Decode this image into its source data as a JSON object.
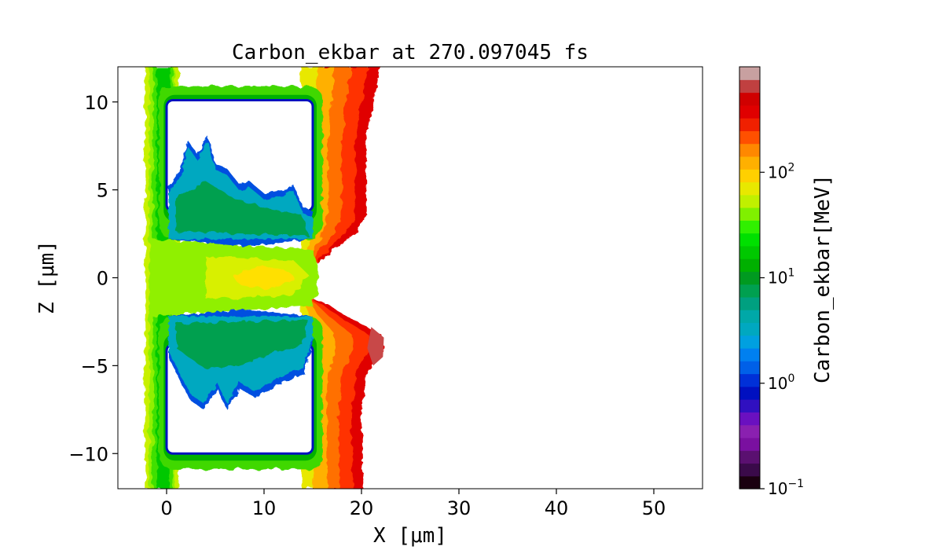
{
  "chart_data": {
    "type": "heatmap",
    "title": "Carbon_ekbar at 270.097045 fs",
    "xlabel": "X  [μm]",
    "ylabel": "Z  [μm]",
    "xlim": [
      -5,
      55
    ],
    "ylim": [
      -12,
      12
    ],
    "x_ticks": [
      0,
      10,
      20,
      30,
      40,
      50
    ],
    "x_tick_labels": [
      "0",
      "10",
      "20",
      "30",
      "40",
      "50"
    ],
    "y_ticks": [
      10,
      5,
      0,
      -5,
      -10
    ],
    "y_tick_labels": [
      "10",
      "5",
      "0",
      "−5",
      "−10"
    ],
    "colorbar": {
      "label": "Carbon_ekbar[MeV]",
      "scale": "log",
      "range": [
        0.1,
        1000
      ],
      "ticks": [
        {
          "value": 0.1,
          "base": "10",
          "exp": "−1"
        },
        {
          "value": 1,
          "base": "10",
          "exp": "0"
        },
        {
          "value": 10,
          "base": "10",
          "exp": "1"
        },
        {
          "value": 100,
          "base": "10",
          "exp": "2"
        }
      ],
      "colors": [
        "#1a0010",
        "#3a0a4a",
        "#5a1070",
        "#7a10a0",
        "#8a20b0",
        "#6a10c0",
        "#3010c0",
        "#0010c0",
        "#0030d8",
        "#0060e8",
        "#0080f0",
        "#00a0e0",
        "#00a8c0",
        "#00a8a8",
        "#00a080",
        "#00a050",
        "#009a20",
        "#00b000",
        "#00c800",
        "#00e000",
        "#30f000",
        "#80f000",
        "#c0f000",
        "#e8e800",
        "#ffd000",
        "#ffb000",
        "#ff8800",
        "#ff5000",
        "#f02000",
        "#e00000",
        "#d00000",
        "#c04040",
        "#c8a0a0"
      ]
    },
    "regions": [
      {
        "name": "left-wall-band",
        "x": [
          -2.2,
          1.5
        ],
        "z": [
          -12,
          12
        ],
        "energy_mev": 40
      },
      {
        "name": "upper-rect-edge",
        "x": [
          0,
          15
        ],
        "z": [
          3.8,
          10.1
        ],
        "energy_mev": 0.5
      },
      {
        "name": "lower-rect-edge",
        "x": [
          0,
          15
        ],
        "z": [
          -10.0,
          -3.8
        ],
        "energy_mev": 0.5
      },
      {
        "name": "upper-plume",
        "x": [
          0.5,
          14
        ],
        "z": [
          1.5,
          8.0
        ],
        "energy_mev": 3
      },
      {
        "name": "lower-plume",
        "x": [
          0.5,
          14
        ],
        "z": [
          -7.5,
          -1.5
        ],
        "energy_mev": 3
      },
      {
        "name": "central-jet",
        "x": [
          -1,
          15
        ],
        "z": [
          -1.5,
          1.5
        ],
        "energy_mev": 40
      },
      {
        "name": "right-wall-hot",
        "x": [
          15,
          22
        ],
        "z": [
          -12,
          12
        ],
        "energy_mev": 600
      }
    ]
  }
}
